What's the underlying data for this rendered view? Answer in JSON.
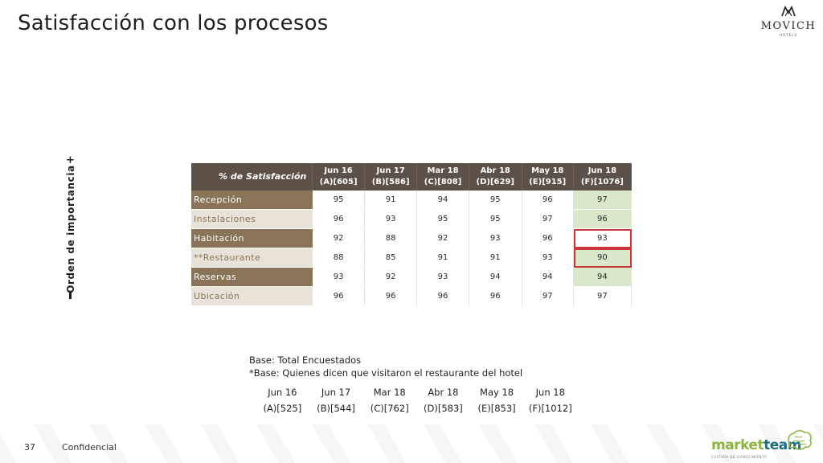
{
  "header": {
    "title": "Satisfacción con los procesos",
    "logo_text": "MOVICH",
    "logo_sub": "HOTELS"
  },
  "axis": {
    "label": "Orden de importancia",
    "plus": "+",
    "minus": "-"
  },
  "table": {
    "header_label": "% de Satisfacción",
    "columns": [
      {
        "line1": "Jun 16",
        "line2": "(A)[605]"
      },
      {
        "line1": "Jun 17",
        "line2": "(B)[586]"
      },
      {
        "line1": "Mar 18",
        "line2": "(C)[808]"
      },
      {
        "line1": "Abr 18",
        "line2": "(D)[629]"
      },
      {
        "line1": "May 18",
        "line2": "(E)[915]"
      },
      {
        "line1": "Jun 18",
        "line2": "(F)[1076]"
      }
    ],
    "rows": [
      {
        "label": "Recepción",
        "values": [
          "95",
          "91",
          "94",
          "95",
          "96",
          "97"
        ]
      },
      {
        "label": "Instalaciones",
        "values": [
          "96",
          "93",
          "95",
          "95",
          "97",
          "96"
        ]
      },
      {
        "label": "Habitación",
        "values": [
          "92",
          "88",
          "92",
          "93",
          "96",
          "93"
        ]
      },
      {
        "label": "**Restaurante",
        "values": [
          "88",
          "85",
          "91",
          "91",
          "93",
          "90"
        ]
      },
      {
        "label": "Reservas",
        "values": [
          "93",
          "92",
          "93",
          "94",
          "94",
          "94"
        ]
      },
      {
        "label": "Ubicación",
        "values": [
          "96",
          "96",
          "96",
          "96",
          "97",
          "97"
        ]
      }
    ]
  },
  "notes": {
    "line1": "Base: Total Encuestados",
    "line2": "*Base: Quienes dicen que visitaron el restaurante del hotel"
  },
  "bases": [
    {
      "period": "Jun 16",
      "base": "(A)[525]"
    },
    {
      "period": "Jun 17",
      "base": "(B)[544]"
    },
    {
      "period": "Mar 18",
      "base": "(C)[762]"
    },
    {
      "period": "Abr 18",
      "base": "(D)[583]"
    },
    {
      "period": "May 18",
      "base": "(E)[853]"
    },
    {
      "period": "Jun 18",
      "base": "(F)[1012]"
    }
  ],
  "footer": {
    "page_number": "37",
    "confidential": "Confidencial",
    "brand_market": "market",
    "brand_team": "team",
    "brand_tagline": "CULTURA DE CONOCIMIENTO"
  },
  "colors": {
    "header_bg": "#5b5148",
    "dark_label_bg": "#8a7458",
    "light_label_bg": "#e8e2d8",
    "highlight_green": "#d8e8c8",
    "box_red": "#c8383a"
  }
}
